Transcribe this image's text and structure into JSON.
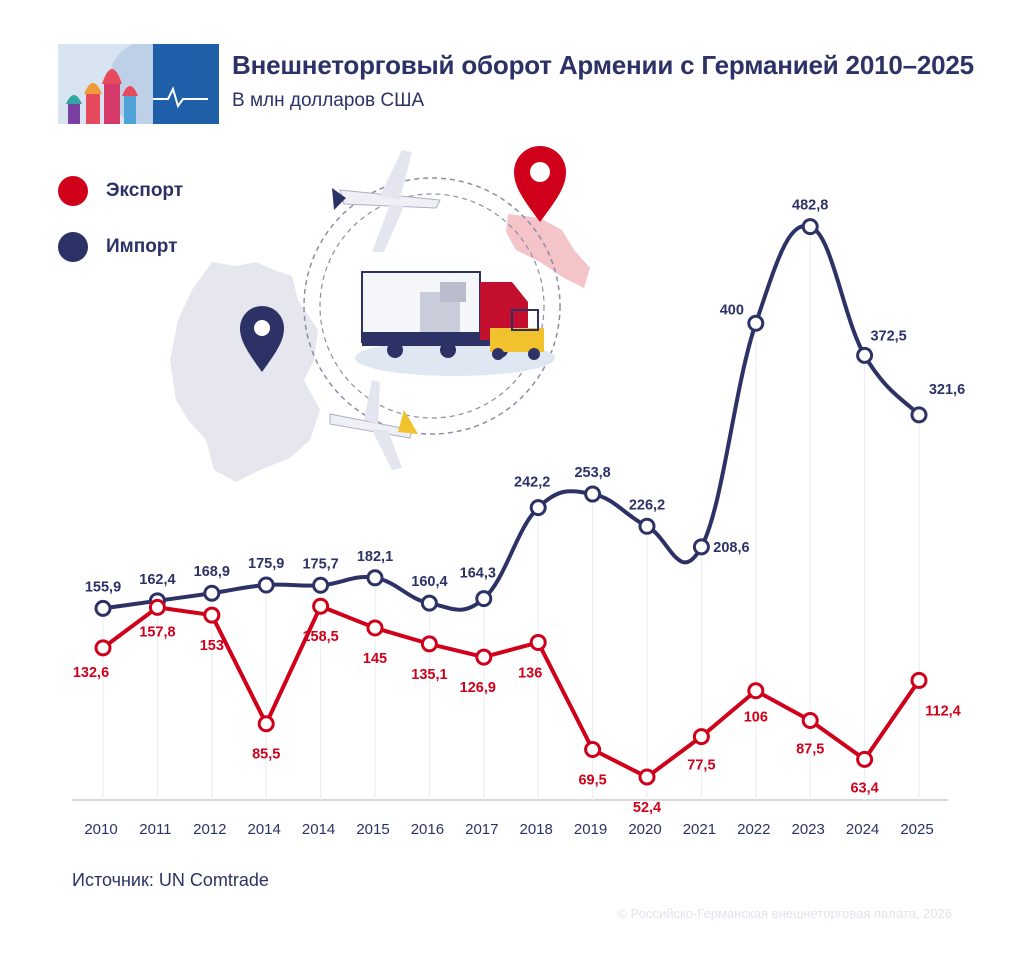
{
  "header": {
    "title": "Внешнеторговый оборот Армении с Германией 2010–2025",
    "subtitle": "В млн долларов США"
  },
  "legend": [
    {
      "label": "Экспорт",
      "color": "#d0001b"
    },
    {
      "label": "Импорт",
      "color": "#2c3266"
    }
  ],
  "footer": {
    "source": "Источник: UN Comtrade",
    "copyright": "© Российско-Германская внешнеторговая палата, 2026"
  },
  "chart_data": {
    "type": "line",
    "title": "Внешнеторговый оборот Армении с Германией 2010–2025",
    "subtitle": "В млн долларов США",
    "categories": [
      "2010",
      "2011",
      "2012",
      "2014",
      "2014",
      "2015",
      "2016",
      "2017",
      "2018",
      "2019",
      "2020",
      "2021",
      "2022",
      "2023",
      "2024",
      "2025"
    ],
    "series": [
      {
        "name": "Экспорт",
        "color": "#d0001b",
        "values": [
          132.6,
          157.8,
          153,
          85.5,
          158.5,
          145,
          135.1,
          126.9,
          136,
          69.5,
          52.4,
          77.5,
          106,
          87.5,
          63.4,
          112.4
        ],
        "labels": [
          "132,6",
          "157,8",
          "153",
          "85,5",
          "158,5",
          "145",
          "135,1",
          "126,9",
          "136",
          "69,5",
          "52,4",
          "77,5",
          "106",
          "87,5",
          "63,4",
          "112,4"
        ]
      },
      {
        "name": "Импорт",
        "color": "#2c3266",
        "values": [
          155.9,
          162.4,
          168.9,
          175.9,
          175.7,
          182.1,
          160.4,
          164.3,
          242.2,
          253.8,
          226.2,
          208.6,
          400,
          482.8,
          372.5,
          321.6
        ],
        "labels": [
          "155,9",
          "162,4",
          "168,9",
          "175,9",
          "175,7",
          "182,1",
          "160,4",
          "164,3",
          "242,2",
          "253,8",
          "226,2",
          "208,6",
          "400",
          "482,8",
          "372,5",
          "321,6"
        ]
      }
    ],
    "legend_position": "top-left",
    "grid": false
  }
}
